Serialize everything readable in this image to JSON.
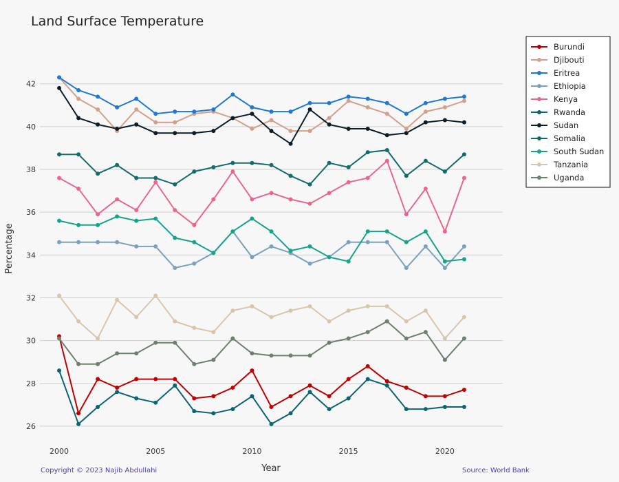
{
  "footer": {
    "credit": "Copyright © 2023 Najib Abdullahi",
    "source": "Source: World Bank"
  },
  "chart_data": {
    "type": "line",
    "title": "Land Surface Temperature",
    "xlabel": "Year",
    "ylabel": "Percentage",
    "x": [
      2000,
      2001,
      2002,
      2003,
      2004,
      2005,
      2006,
      2007,
      2008,
      2009,
      2010,
      2011,
      2012,
      2013,
      2014,
      2015,
      2016,
      2017,
      2018,
      2019,
      2020,
      2021
    ],
    "xlim": [
      1999,
      2023
    ],
    "ylim": [
      25.0,
      43.6
    ],
    "xticks": [
      2000,
      2005,
      2010,
      2015,
      2020
    ],
    "yticks": [
      26,
      28,
      30,
      32,
      34,
      36,
      38,
      40,
      42
    ],
    "grid": "horizontal",
    "legend_position": "top-right",
    "series": [
      {
        "name": "Burundi",
        "color": "#c00000",
        "values": [
          30.2,
          26.6,
          28.2,
          27.8,
          28.2,
          28.2,
          28.2,
          27.3,
          27.4,
          27.8,
          28.6,
          26.9,
          27.4,
          27.9,
          27.4,
          28.2,
          28.8,
          28.1,
          27.8,
          27.4,
          27.4,
          27.7
        ]
      },
      {
        "name": "Djibouti",
        "color": "#d4a088",
        "values": [
          42.3,
          41.3,
          40.8,
          39.8,
          40.8,
          40.2,
          40.2,
          40.6,
          40.7,
          40.4,
          39.9,
          40.3,
          39.8,
          39.8,
          40.4,
          41.2,
          40.9,
          40.6,
          39.9,
          40.7,
          40.9,
          41.2
        ]
      },
      {
        "name": "Eritrea",
        "color": "#1f78d1",
        "values": [
          42.3,
          41.7,
          41.4,
          40.9,
          41.3,
          40.6,
          40.7,
          40.7,
          40.8,
          41.5,
          40.9,
          40.7,
          40.7,
          41.1,
          41.1,
          41.4,
          41.3,
          41.1,
          40.6,
          41.1,
          41.3,
          41.4
        ]
      },
      {
        "name": "Ethiopia",
        "color": "#7aa1bf",
        "values": [
          34.6,
          34.6,
          34.6,
          34.6,
          34.4,
          34.4,
          33.4,
          33.6,
          34.1,
          35.1,
          33.9,
          34.4,
          34.1,
          33.6,
          33.9,
          34.6,
          34.6,
          34.6,
          33.4,
          34.4,
          33.4,
          34.4
        ]
      },
      {
        "name": "Kenya",
        "color": "#e8688c",
        "values": [
          37.6,
          37.1,
          35.9,
          36.6,
          36.1,
          37.4,
          36.1,
          35.4,
          36.6,
          37.9,
          36.6,
          36.9,
          36.6,
          36.4,
          36.9,
          37.4,
          37.6,
          38.4,
          35.9,
          37.1,
          35.1,
          37.6
        ]
      },
      {
        "name": "Rwanda",
        "color": "#0b6470",
        "values": [
          28.6,
          26.1,
          26.9,
          27.6,
          27.3,
          27.1,
          27.9,
          26.7,
          26.6,
          26.8,
          27.4,
          26.1,
          26.6,
          27.6,
          26.8,
          27.3,
          28.2,
          27.9,
          26.8,
          26.8,
          26.9,
          26.9
        ]
      },
      {
        "name": "Sudan",
        "color": "#0d1d28",
        "values": [
          41.8,
          40.4,
          40.1,
          39.9,
          40.1,
          39.7,
          39.7,
          39.7,
          39.8,
          40.4,
          40.6,
          39.8,
          39.2,
          40.8,
          40.1,
          39.9,
          39.9,
          39.6,
          39.7,
          40.2,
          40.3,
          40.2
        ]
      },
      {
        "name": "Somalia",
        "color": "#136b6b",
        "values": [
          38.7,
          38.7,
          37.8,
          38.2,
          37.6,
          37.6,
          37.3,
          37.9,
          38.1,
          38.3,
          38.3,
          38.2,
          37.7,
          37.3,
          38.3,
          38.1,
          38.8,
          38.9,
          37.7,
          38.4,
          37.9,
          38.7
        ]
      },
      {
        "name": "South Sudan",
        "color": "#15a38a",
        "values": [
          35.6,
          35.4,
          35.4,
          35.8,
          35.6,
          35.7,
          34.8,
          34.6,
          34.1,
          35.1,
          35.7,
          35.1,
          34.2,
          34.4,
          33.9,
          33.7,
          35.1,
          35.1,
          34.6,
          35.1,
          33.7,
          33.8
        ]
      },
      {
        "name": "Tanzania",
        "color": "#d8c5ae",
        "values": [
          32.1,
          30.9,
          30.1,
          31.9,
          31.1,
          32.1,
          30.9,
          30.6,
          30.4,
          31.4,
          31.6,
          31.1,
          31.4,
          31.6,
          30.9,
          31.4,
          31.6,
          31.6,
          30.9,
          31.4,
          30.1,
          31.1
        ]
      },
      {
        "name": "Uganda",
        "color": "#6e7f70",
        "values": [
          30.1,
          28.9,
          28.9,
          29.4,
          29.4,
          29.9,
          29.9,
          28.9,
          29.1,
          30.1,
          29.4,
          29.3,
          29.3,
          29.3,
          29.9,
          30.1,
          30.4,
          30.9,
          30.1,
          30.4,
          29.1,
          30.1
        ]
      }
    ]
  }
}
